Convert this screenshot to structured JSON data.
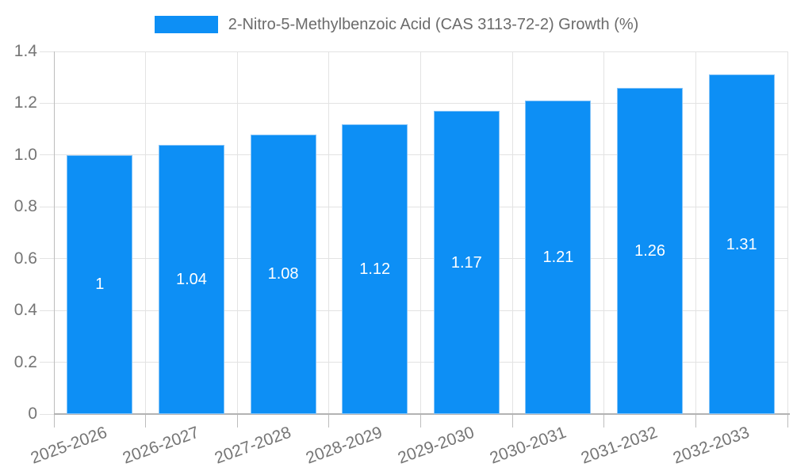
{
  "legend": {
    "label": "2-Nitro-5-Methylbenzoic Acid (CAS 3113-72-2) Growth (%)"
  },
  "chart_data": {
    "type": "bar",
    "title": "2-Nitro-5-Methylbenzoic Acid (CAS 3113-72-2) Growth (%)",
    "categories": [
      "2025-2026",
      "2026-2027",
      "2027-2028",
      "2028-2029",
      "2029-2030",
      "2030-2031",
      "2031-2032",
      "2032-2033"
    ],
    "series": [
      {
        "name": "2-Nitro-5-Methylbenzoic Acid (CAS 3113-72-2) Growth (%)",
        "values": [
          1,
          1.04,
          1.08,
          1.12,
          1.17,
          1.21,
          1.26,
          1.31
        ],
        "value_labels": [
          "1",
          "1.04",
          "1.08",
          "1.12",
          "1.17",
          "1.21",
          "1.26",
          "1.31"
        ]
      }
    ],
    "xlabel": "",
    "ylabel": "",
    "ylim": [
      0,
      1.4
    ],
    "y_ticks": [
      "0",
      "0.2",
      "0.4",
      "0.6",
      "0.8",
      "1.0",
      "1.2",
      "1.4"
    ],
    "grid": true,
    "legend_position": "top",
    "colors": {
      "bar": "#0d8ff5",
      "bar_border": "#85c4f8",
      "grid": "#e3e3e3",
      "axis_x": "#b3b3b3",
      "axis_y": "#bdbdbd",
      "tick_text": "#757575",
      "legend_text": "#6b6b6b",
      "value_text": "#ffffff"
    }
  }
}
